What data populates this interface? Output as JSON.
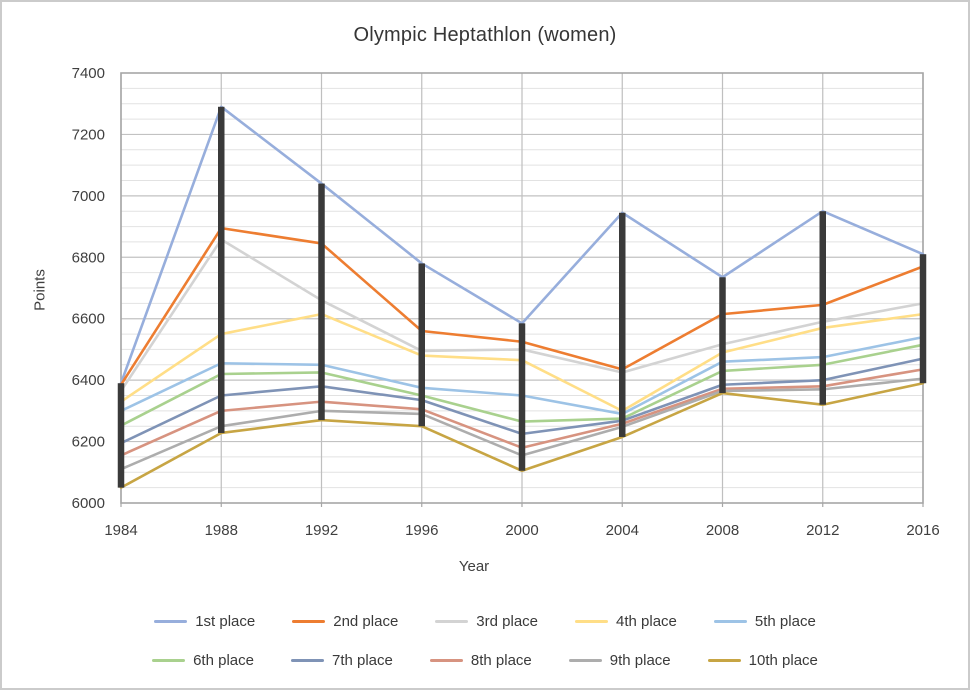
{
  "window": {
    "background": "#FFFFFF",
    "frame_border_color": "#CBCBCB"
  },
  "colors": {
    "plot_border": "#A6A6A6",
    "grid_major": "#C2C2C2",
    "grid_minor": "#E2E2E2",
    "grid_vertical": "#BFBFBF",
    "axis_text": "#3F3F3F",
    "title_text": "#363636",
    "high_low_bar": "#3A3A3A"
  },
  "chart_data": {
    "type": "line",
    "title": "Olympic Heptathlon (women)",
    "xlabel": "Year",
    "ylabel": "Points",
    "x": [
      1984,
      1988,
      1992,
      1996,
      2000,
      2004,
      2008,
      2012,
      2016
    ],
    "ylim": [
      6000,
      7400
    ],
    "y_ticks": [
      6000,
      6200,
      6400,
      6600,
      6800,
      7000,
      7200,
      7400
    ],
    "y_major_step": 200,
    "y_minor_step": 50,
    "grid": {
      "horizontal_major": true,
      "horizontal_minor": true,
      "vertical_at_categories": true
    },
    "legend_position": "bottom",
    "legend_rows": [
      [
        0,
        1,
        2,
        3,
        4
      ],
      [
        5,
        6,
        7,
        8,
        9
      ]
    ],
    "high_low_bars": {
      "enabled": true,
      "color": "#3A3A3A",
      "width": 6.5
    },
    "series": [
      {
        "name": "1st place",
        "color": "#97AEDC",
        "values": [
          6390,
          7290,
          7040,
          6780,
          6585,
          6945,
          6735,
          6950,
          6810
        ]
      },
      {
        "name": "2nd place",
        "color": "#ED7D31",
        "values": [
          6385,
          6895,
          6845,
          6560,
          6525,
          6435,
          6615,
          6645,
          6770
        ]
      },
      {
        "name": "3rd place",
        "color": "#D3D3D3",
        "values": [
          6365,
          6858,
          6660,
          6495,
          6500,
          6425,
          6517,
          6590,
          6650
        ]
      },
      {
        "name": "4th place",
        "color": "#FFDE87",
        "values": [
          6330,
          6550,
          6615,
          6480,
          6465,
          6300,
          6490,
          6570,
          6615
        ]
      },
      {
        "name": "5th place",
        "color": "#9DC3E6",
        "values": [
          6300,
          6455,
          6450,
          6375,
          6350,
          6290,
          6460,
          6475,
          6540
        ]
      },
      {
        "name": "6th place",
        "color": "#A9D18E",
        "values": [
          6252,
          6420,
          6425,
          6350,
          6265,
          6275,
          6430,
          6450,
          6515
        ]
      },
      {
        "name": "7th place",
        "color": "#7F93B6",
        "values": [
          6195,
          6350,
          6380,
          6335,
          6225,
          6268,
          6385,
          6400,
          6470
        ]
      },
      {
        "name": "8th place",
        "color": "#D79380",
        "values": [
          6155,
          6300,
          6330,
          6305,
          6180,
          6258,
          6372,
          6380,
          6435
        ]
      },
      {
        "name": "9th place",
        "color": "#ADADAD",
        "values": [
          6110,
          6250,
          6300,
          6290,
          6155,
          6248,
          6365,
          6370,
          6405
        ]
      },
      {
        "name": "10th place",
        "color": "#C7A544",
        "values": [
          6050,
          6228,
          6270,
          6250,
          6105,
          6215,
          6358,
          6320,
          6390
        ]
      }
    ]
  }
}
